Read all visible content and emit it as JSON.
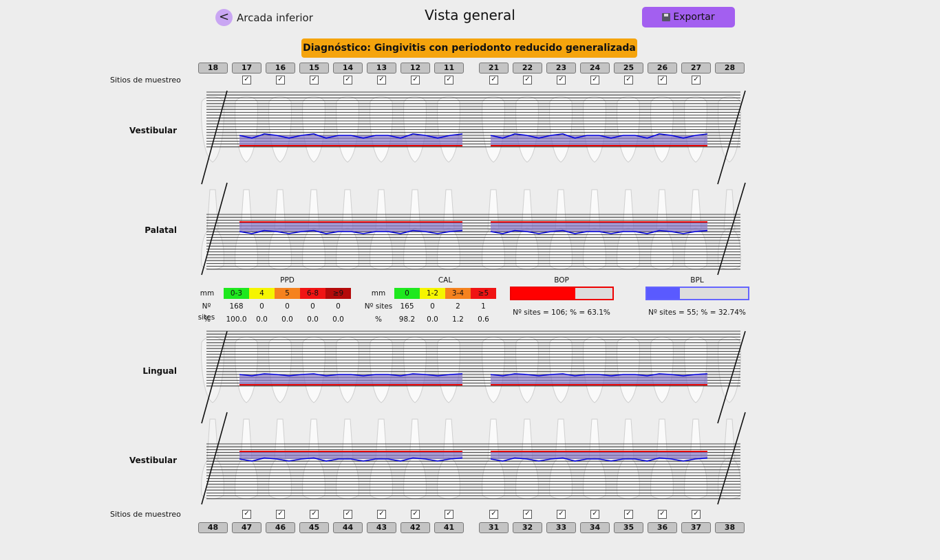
{
  "header": {
    "back_label": "Arcada inferior",
    "back_icon": "<",
    "title": "Vista general",
    "export_label": "Exportar"
  },
  "diagnosis": "Diagnóstico: Gingivitis con periodonto reducido generalizada",
  "upper": {
    "teeth": [
      "18",
      "17",
      "16",
      "15",
      "14",
      "13",
      "12",
      "11",
      "21",
      "22",
      "23",
      "24",
      "25",
      "26",
      "27",
      "28"
    ],
    "sampling_label": "Sitios de muestreo",
    "checked": [
      false,
      true,
      true,
      true,
      true,
      true,
      true,
      true,
      true,
      true,
      true,
      true,
      true,
      true,
      true,
      false
    ],
    "row1_label": "Vestibular",
    "row2_label": "Palatal"
  },
  "lower": {
    "teeth": [
      "48",
      "47",
      "46",
      "45",
      "44",
      "43",
      "42",
      "41",
      "31",
      "32",
      "33",
      "34",
      "35",
      "36",
      "37",
      "38"
    ],
    "sampling_label": "Sitios de muestreo",
    "checked": [
      false,
      true,
      true,
      true,
      true,
      true,
      true,
      true,
      true,
      true,
      true,
      true,
      true,
      true,
      true,
      false
    ],
    "row1_label": "Lingual",
    "row2_label": "Vestibular"
  },
  "stats": {
    "mm_label": "mm",
    "sites_label": "Nº sites",
    "pct_label": "%",
    "ppd": {
      "title": "PPD",
      "categories": [
        "0-3",
        "4",
        "5",
        "6-8",
        "≥9"
      ],
      "colors": [
        "#1ee81e",
        "#f5f500",
        "#f5821e",
        "#f01414",
        "#b40a0a"
      ],
      "sites": [
        "168",
        "0",
        "0",
        "0",
        "0"
      ],
      "pct": [
        "100.0",
        "0.0",
        "0.0",
        "0.0",
        "0.0"
      ]
    },
    "cal": {
      "title": "CAL",
      "categories": [
        "0",
        "1-2",
        "3-4",
        "≥5"
      ],
      "colors": [
        "#1ee81e",
        "#f5f500",
        "#f5821e",
        "#f01414"
      ],
      "sites": [
        "165",
        "0",
        "2",
        "1"
      ],
      "pct": [
        "98.2",
        "0.0",
        "1.2",
        "0.6"
      ]
    },
    "bop": {
      "title": "BOP",
      "text": "Nº sites = 106; % = 63.1%",
      "fraction": 0.631,
      "color": "#ff0000"
    },
    "bpl": {
      "title": "BPL",
      "text": "Nº sites = 55; % = 32.74%",
      "fraction": 0.3274,
      "color": "#5a5aff"
    }
  },
  "colors": {
    "gingival_line": "#e60000",
    "probing_line": "#0000dd",
    "band": "#8878c8"
  }
}
